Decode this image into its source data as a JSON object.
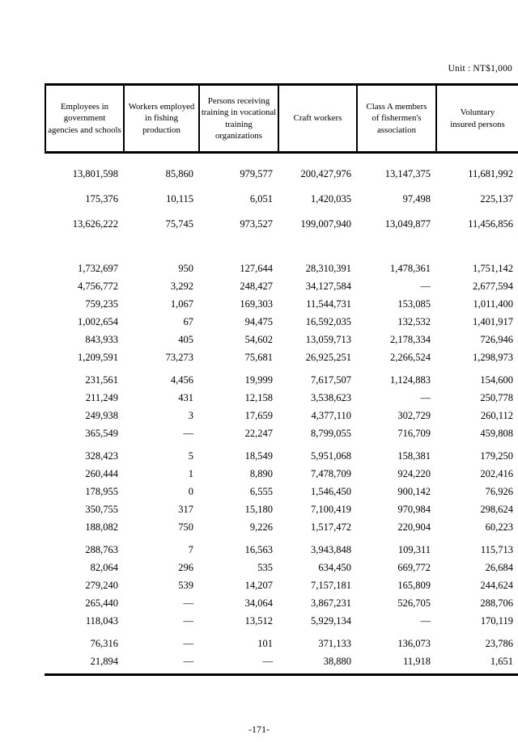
{
  "page": {
    "unit_label": "Unit : NT$1,000",
    "page_number": "-171-"
  },
  "table": {
    "columns": [
      "Employees in\ngovernment\nagencies and schools",
      "Workers employed\nin fishing\nproduction",
      "Persons receiving\ntraining in vocational\ntraining organizations",
      "Craft workers",
      "Class A members\nof fishermen's\nassociation",
      "Voluntary\ninsured persons"
    ],
    "row_groups": [
      {
        "rows": [
          [
            "13,801,598",
            "85,860",
            "979,577",
            "200,427,976",
            "13,147,375",
            "11,681,992"
          ],
          [
            "175,376",
            "10,115",
            "6,051",
            "1,420,035",
            "97,498",
            "225,137"
          ],
          [
            "13,626,222",
            "75,745",
            "973,527",
            "199,007,940",
            "13,049,877",
            "11,456,856"
          ]
        ]
      },
      {
        "rows": [
          [
            "1,732,697",
            "950",
            "127,644",
            "28,310,391",
            "1,478,361",
            "1,751,142"
          ],
          [
            "4,756,772",
            "3,292",
            "248,427",
            "34,127,584",
            "—",
            "2,677,594"
          ],
          [
            "759,235",
            "1,067",
            "169,303",
            "11,544,731",
            "153,085",
            "1,011,400"
          ],
          [
            "1,002,654",
            "67",
            "94,475",
            "16,592,035",
            "132,532",
            "1,401,917"
          ],
          [
            "843,933",
            "405",
            "54,602",
            "13,059,713",
            "2,178,334",
            "726,946"
          ],
          [
            "1,209,591",
            "73,273",
            "75,681",
            "26,925,251",
            "2,266,524",
            "1,298,973"
          ]
        ]
      },
      {
        "rows": [
          [
            "231,561",
            "4,456",
            "19,999",
            "7,617,507",
            "1,124,883",
            "154,600"
          ],
          [
            "211,249",
            "431",
            "12,158",
            "3,538,623",
            "—",
            "250,778"
          ],
          [
            "249,938",
            "3",
            "17,659",
            "4,377,110",
            "302,729",
            "260,112"
          ],
          [
            "365,549",
            "—",
            "22,247",
            "8,799,055",
            "716,709",
            "459,808"
          ]
        ]
      },
      {
        "rows": [
          [
            "328,423",
            "5",
            "18,549",
            "5,951,068",
            "158,381",
            "179,250"
          ],
          [
            "260,444",
            "1",
            "8,890",
            "7,478,709",
            "924,220",
            "202,416"
          ],
          [
            "178,955",
            "0",
            "6,555",
            "1,546,450",
            "900,142",
            "76,926"
          ],
          [
            "350,755",
            "317",
            "15,180",
            "7,100,419",
            "970,984",
            "298,624"
          ],
          [
            "188,082",
            "750",
            "9,226",
            "1,517,472",
            "220,904",
            "60,223"
          ]
        ]
      },
      {
        "rows": [
          [
            "288,763",
            "7",
            "16,563",
            "3,943,848",
            "109,311",
            "115,713"
          ],
          [
            "82,064",
            "296",
            "535",
            "634,450",
            "669,772",
            "26,684"
          ],
          [
            "279,240",
            "539",
            "14,207",
            "7,157,181",
            "165,809",
            "244,624"
          ],
          [
            "265,440",
            "—",
            "34,064",
            "3,867,231",
            "526,705",
            "288,706"
          ],
          [
            "118,043",
            "—",
            "13,512",
            "5,929,134",
            "—",
            "170,119"
          ]
        ]
      },
      {
        "rows": [
          [
            "76,316",
            "—",
            "101",
            "371,133",
            "136,073",
            "23,786"
          ],
          [
            "21,894",
            "—",
            "—",
            "38,880",
            "11,918",
            "1,651"
          ]
        ]
      }
    ]
  }
}
